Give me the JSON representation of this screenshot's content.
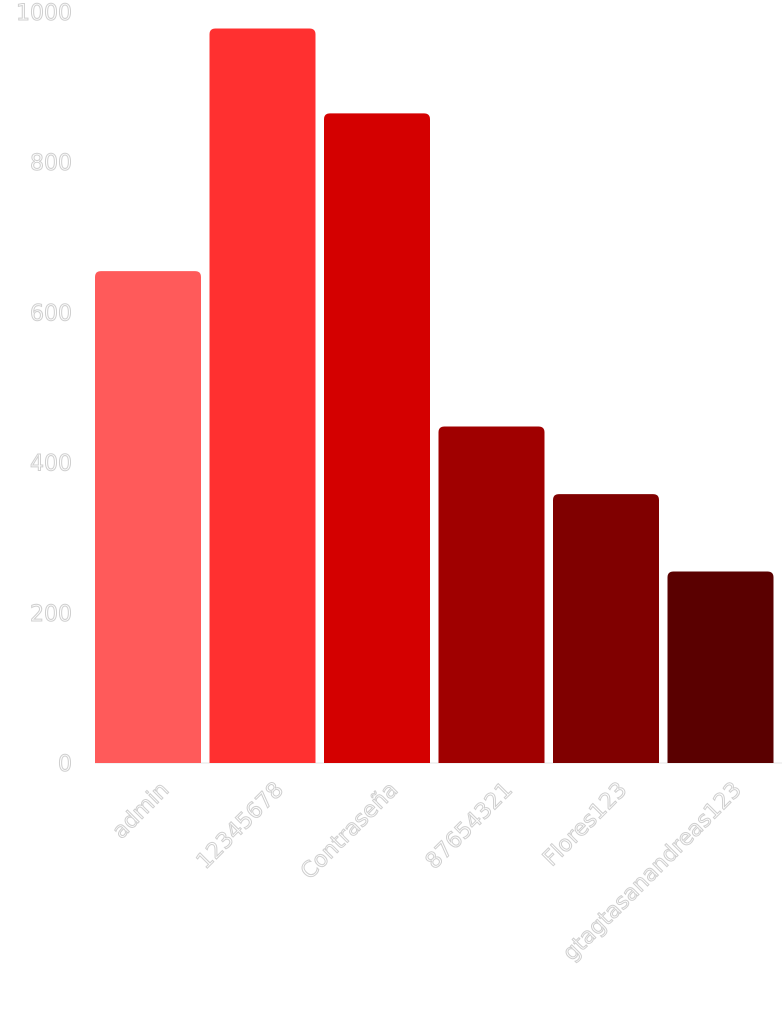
{
  "chart_data": {
    "type": "bar",
    "categories": [
      "admin",
      "12345678",
      "Contraseña",
      "87654321",
      "Flores123",
      "gtagtasanandreas123"
    ],
    "values": [
      655,
      978,
      865,
      448,
      358,
      255
    ],
    "colors": [
      "#ff5a5a",
      "#ff3030",
      "#d40000",
      "#a00000",
      "#800000",
      "#5a0000"
    ],
    "ylim": [
      0,
      1000
    ],
    "yticks": [
      0,
      200,
      400,
      600,
      800,
      1000
    ],
    "xlabel": "",
    "ylabel": "",
    "grid": true,
    "legend": "none"
  }
}
